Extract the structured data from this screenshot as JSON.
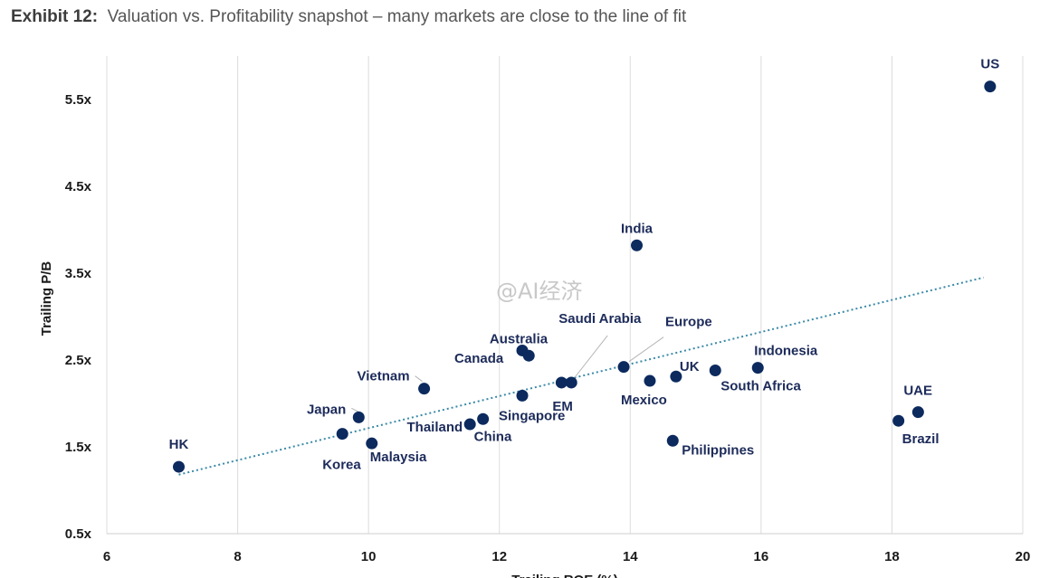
{
  "title": {
    "exhibit": "Exhibit 12:",
    "text": "Valuation vs. Profitability snapshot – many markets are close to the line of fit"
  },
  "watermark": "@AI经济",
  "colors": {
    "point": "#0c2a5e",
    "label": "#1c2b5a",
    "trend": "#3b8aa8",
    "grid": "#dcdcdc"
  },
  "chart_data": {
    "type": "scatter",
    "title": "Valuation vs. Profitability snapshot – many markets are close to the line of fit",
    "xlabel": "Trailing ROE (%)",
    "ylabel": "Trailing P/B",
    "xlim": [
      6,
      20
    ],
    "ylim": [
      0.5,
      6.0
    ],
    "x_ticks": [
      6,
      8,
      10,
      12,
      14,
      16,
      18,
      20
    ],
    "y_ticks": [
      0.5,
      1.5,
      2.5,
      3.5,
      4.5,
      5.5
    ],
    "y_tick_labels": [
      "0.5x",
      "1.5x",
      "2.5x",
      "3.5x",
      "4.5x",
      "5.5x"
    ],
    "grid": "vertical",
    "trendline": {
      "style": "dotted",
      "x": [
        7.1,
        19.4
      ],
      "y": [
        1.18,
        3.45
      ]
    },
    "points": [
      {
        "label": "US",
        "x": 19.5,
        "y": 5.65
      },
      {
        "label": "India",
        "x": 14.1,
        "y": 3.82
      },
      {
        "label": "Australia",
        "x": 12.35,
        "y": 2.61
      },
      {
        "label": "Canada",
        "x": 12.45,
        "y": 2.55
      },
      {
        "label": "Europe",
        "x": 13.9,
        "y": 2.42
      },
      {
        "label": "Saudi Arabia",
        "x": 13.1,
        "y": 2.24
      },
      {
        "label": "EM",
        "x": 12.95,
        "y": 2.24
      },
      {
        "label": "Indonesia",
        "x": 15.95,
        "y": 2.41
      },
      {
        "label": "South Africa",
        "x": 15.3,
        "y": 2.38
      },
      {
        "label": "UK",
        "x": 14.7,
        "y": 2.31
      },
      {
        "label": "Mexico",
        "x": 14.3,
        "y": 2.26
      },
      {
        "label": "Vietnam",
        "x": 10.85,
        "y": 2.17
      },
      {
        "label": "Singapore",
        "x": 12.35,
        "y": 2.09
      },
      {
        "label": "Japan",
        "x": 9.85,
        "y": 1.84
      },
      {
        "label": "China",
        "x": 11.75,
        "y": 1.82
      },
      {
        "label": "Thailand",
        "x": 11.55,
        "y": 1.76
      },
      {
        "label": "Korea",
        "x": 9.6,
        "y": 1.65
      },
      {
        "label": "Malaysia",
        "x": 10.05,
        "y": 1.54
      },
      {
        "label": "Philippines",
        "x": 14.65,
        "y": 1.57
      },
      {
        "label": "UAE",
        "x": 18.4,
        "y": 1.9
      },
      {
        "label": "Brazil",
        "x": 18.1,
        "y": 1.8
      },
      {
        "label": "HK",
        "x": 7.1,
        "y": 1.27
      }
    ]
  }
}
